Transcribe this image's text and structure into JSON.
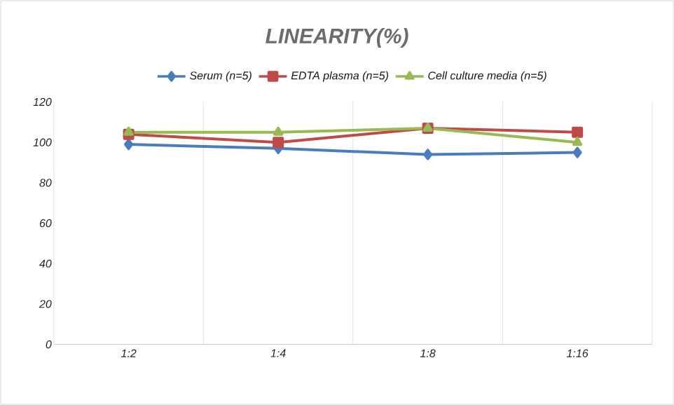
{
  "chart_data": {
    "type": "line",
    "title": "LINEARITY(%)",
    "categories": [
      "1:2",
      "1:4",
      "1:8",
      "1:16"
    ],
    "series": [
      {
        "name": "Serum (n=5)",
        "color": "#4a7ebb",
        "marker": "diamond",
        "values": [
          99,
          97,
          94,
          95
        ]
      },
      {
        "name": "EDTA plasma (n=5)",
        "color": "#be4b48",
        "marker": "square",
        "values": [
          104,
          100,
          107,
          105
        ]
      },
      {
        "name": "Cell culture media (n=5)",
        "color": "#98b954",
        "marker": "triangle",
        "values": [
          105,
          105,
          107,
          100
        ]
      }
    ],
    "ylim": [
      0,
      120
    ],
    "yticks": [
      0,
      20,
      40,
      60,
      80,
      100,
      120
    ],
    "grid": "x",
    "legend": "top"
  }
}
